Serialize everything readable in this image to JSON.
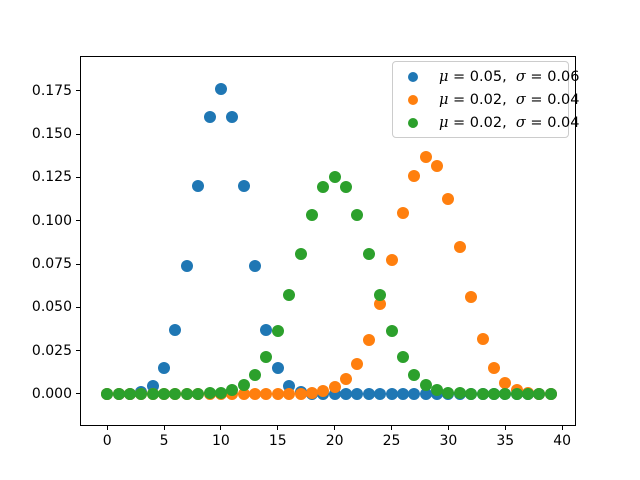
{
  "chart_data": {
    "type": "scatter",
    "title": "",
    "xlabel": "",
    "ylabel": "",
    "grid": false,
    "legend_position": "upper right",
    "xlim": [
      -2.3,
      41.13
    ],
    "ylim": [
      -0.018,
      0.1946
    ],
    "x_ticks": [
      0,
      5,
      10,
      15,
      20,
      25,
      30,
      35,
      40
    ],
    "x_tick_labels": [
      "0",
      "5",
      "10",
      "15",
      "20",
      "25",
      "30",
      "35",
      "40"
    ],
    "y_ticks": [
      0.0,
      0.025,
      0.05,
      0.075,
      0.1,
      0.125,
      0.15,
      0.175
    ],
    "y_tick_labels": [
      "0.000",
      "0.025",
      "0.050",
      "0.075",
      "0.100",
      "0.125",
      "0.150",
      "0.175"
    ],
    "x": [
      0,
      1,
      2,
      3,
      4,
      5,
      6,
      7,
      8,
      9,
      10,
      11,
      12,
      13,
      14,
      15,
      16,
      17,
      18,
      19,
      20,
      21,
      22,
      23,
      24,
      25,
      26,
      27,
      28,
      29,
      30,
      31,
      32,
      33,
      34,
      35,
      36,
      37,
      38,
      39
    ],
    "series": [
      {
        "name": "blue-series",
        "color": "#1f77b4",
        "legend_label": "μ = 0.05,  σ = 0.06",
        "values": [
          1e-06,
          1.9e-05,
          0.000181,
          0.001087,
          0.004621,
          0.014786,
          0.036964,
          0.073929,
          0.120134,
          0.160179,
          0.176197,
          0.160179,
          0.120134,
          0.073929,
          0.036964,
          0.014786,
          0.004621,
          0.001087,
          0.000181,
          1.9e-05,
          1e-06,
          0,
          0,
          0,
          0,
          0,
          0,
          0,
          0,
          0,
          0,
          0,
          0,
          0,
          0,
          0,
          0,
          0,
          0,
          0
        ]
      },
      {
        "name": "orange-series",
        "color": "#ff7f0e",
        "legend_label": "μ = 0.02,  σ = 0.04",
        "values": [
          0,
          0,
          0,
          0,
          0,
          0,
          0,
          0,
          0,
          0,
          0,
          0,
          0,
          1e-06,
          4e-06,
          1.7e-05,
          6.3e-05,
          0.000194,
          0.000579,
          0.001565,
          0.003834,
          0.008516,
          0.017168,
          0.031361,
          0.051829,
          0.077414,
          0.104199,
          0.126071,
          0.136568,
          0.131858,
          0.112811,
          0.084912,
          0.055724,
          0.031516,
          0.015141,
          0.006056,
          0.001963,
          0.000495,
          9.1e-05,
          1.1e-05
        ]
      },
      {
        "name": "green-series",
        "color": "#2ca02c",
        "legend_label": "μ = 0.02,  σ = 0.04",
        "values": [
          0,
          0,
          0,
          0,
          0,
          1e-06,
          3e-06,
          1.7e-05,
          7e-05,
          0.000248,
          0.000773,
          0.002109,
          0.005081,
          0.010944,
          0.021101,
          0.036575,
          0.05716,
          0.080702,
          0.103122,
          0.119401,
          0.125371,
          0.119401,
          0.103122,
          0.080702,
          0.05716,
          0.036575,
          0.021101,
          0.010944,
          0.005081,
          0.002109,
          0.000773,
          0.000248,
          7e-05,
          1.7e-05,
          3e-06,
          1e-06,
          0,
          0,
          0,
          0
        ]
      }
    ]
  },
  "colors": {
    "background": "#ffffff",
    "spine": "#000000",
    "tick_label": "#000000",
    "legend_border": "#cccccc"
  }
}
